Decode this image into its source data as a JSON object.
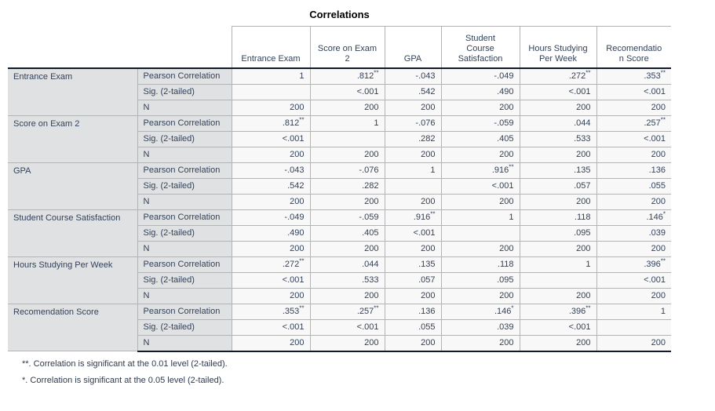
{
  "title": "Correlations",
  "colors": {
    "text": "#32425a",
    "label_background": "#e0e1e3",
    "cell_background": "#f8f8f9",
    "grid_line": "#b3b4b6",
    "heavy_rule": "#101a2b"
  },
  "columns": [
    "Entrance Exam",
    "Score on Exam\n2",
    "GPA",
    "Student\nCourse\nSatisfaction",
    "Hours Studying\nPer Week",
    "Recomendatio\nn Score"
  ],
  "stat_labels": [
    "Pearson Correlation",
    "Sig. (2-tailed)",
    "N"
  ],
  "rows": [
    {
      "variable": "Entrance Exam",
      "pearson": [
        "1",
        ".812**",
        "-.043",
        "-.049",
        ".272**",
        ".353**"
      ],
      "sig": [
        "",
        "<.001",
        ".542",
        ".490",
        "<.001",
        "<.001"
      ],
      "n": [
        "200",
        "200",
        "200",
        "200",
        "200",
        "200"
      ]
    },
    {
      "variable": "Score on Exam 2",
      "pearson": [
        ".812**",
        "1",
        "-.076",
        "-.059",
        ".044",
        ".257**"
      ],
      "sig": [
        "<.001",
        "",
        ".282",
        ".405",
        ".533",
        "<.001"
      ],
      "n": [
        "200",
        "200",
        "200",
        "200",
        "200",
        "200"
      ]
    },
    {
      "variable": "GPA",
      "pearson": [
        "-.043",
        "-.076",
        "1",
        ".916**",
        ".135",
        ".136"
      ],
      "sig": [
        ".542",
        ".282",
        "",
        "<.001",
        ".057",
        ".055"
      ],
      "n": [
        "200",
        "200",
        "200",
        "200",
        "200",
        "200"
      ]
    },
    {
      "variable": "Student Course Satisfaction",
      "pearson": [
        "-.049",
        "-.059",
        ".916**",
        "1",
        ".118",
        ".146*"
      ],
      "sig": [
        ".490",
        ".405",
        "<.001",
        "",
        ".095",
        ".039"
      ],
      "n": [
        "200",
        "200",
        "200",
        "200",
        "200",
        "200"
      ]
    },
    {
      "variable": "Hours Studying Per Week",
      "pearson": [
        ".272**",
        ".044",
        ".135",
        ".118",
        "1",
        ".396**"
      ],
      "sig": [
        "<.001",
        ".533",
        ".057",
        ".095",
        "",
        "<.001"
      ],
      "n": [
        "200",
        "200",
        "200",
        "200",
        "200",
        "200"
      ]
    },
    {
      "variable": "Recomendation Score",
      "pearson": [
        ".353**",
        ".257**",
        ".136",
        ".146*",
        ".396**",
        "1"
      ],
      "sig": [
        "<.001",
        "<.001",
        ".055",
        ".039",
        "<.001",
        ""
      ],
      "n": [
        "200",
        "200",
        "200",
        "200",
        "200",
        "200"
      ]
    }
  ],
  "footnotes": [
    "**. Correlation is significant at the 0.01 level (2-tailed).",
    "*. Correlation is significant at the 0.05 level (2-tailed)."
  ]
}
